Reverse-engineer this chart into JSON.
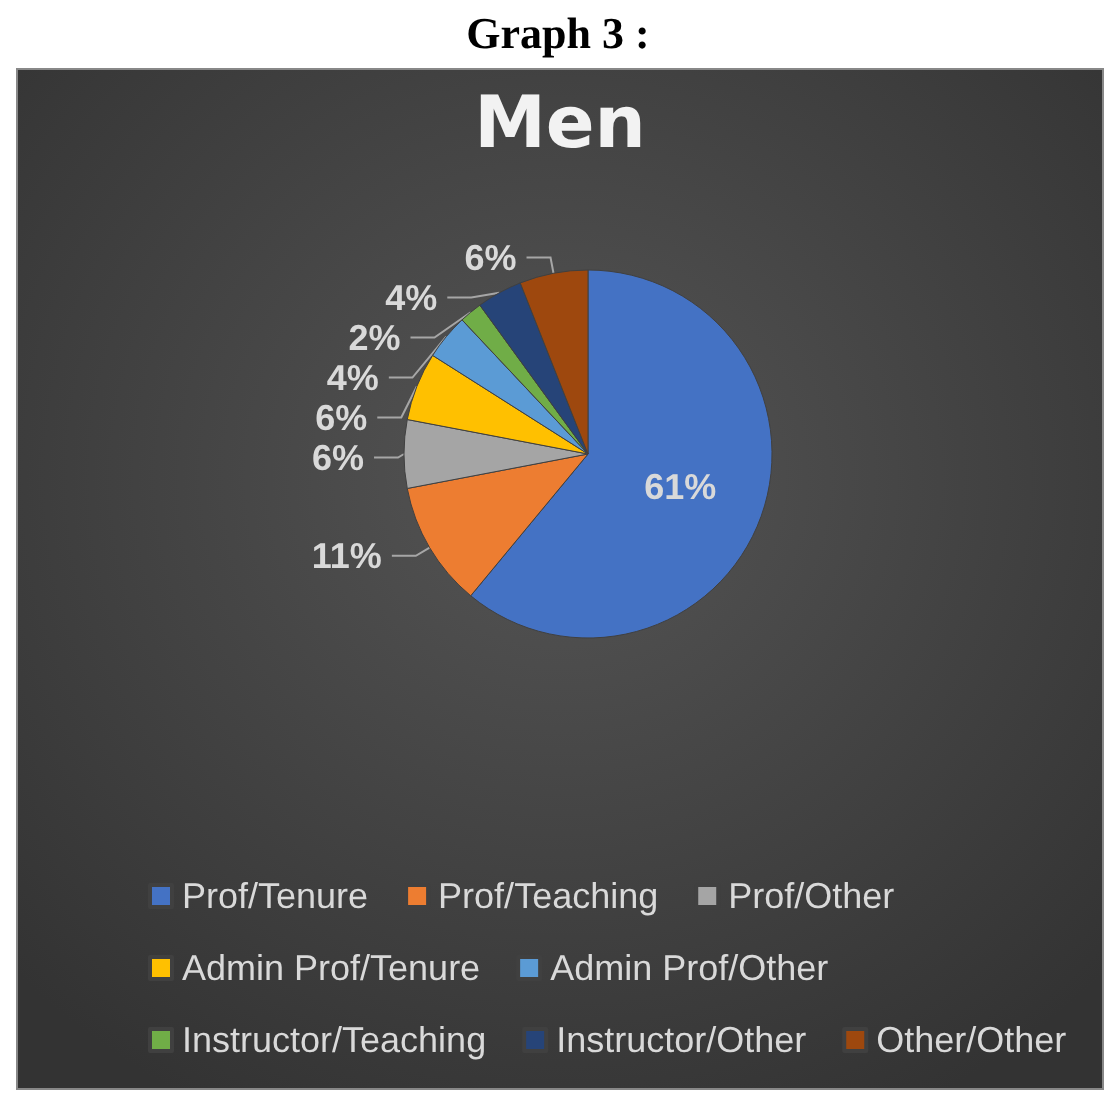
{
  "chart_data": {
    "type": "pie",
    "title": "Men",
    "annotations": [
      "Graph 3 :"
    ],
    "categories": [
      "Prof/Tenure",
      "Prof/Teaching",
      "Prof/Other",
      "Admin Prof/Tenure",
      "Admin Prof/Other",
      "Instructor/Teaching",
      "Instructor/Other",
      "Other/Other"
    ],
    "values": [
      61,
      11,
      6,
      6,
      4,
      2,
      4,
      6
    ],
    "colors": [
      "#4472c4",
      "#ed7d31",
      "#a5a5a5",
      "#ffc000",
      "#5b9bd5",
      "#70ad47",
      "#264478",
      "#9e480e"
    ],
    "value_labels": [
      "61%",
      "11%",
      "6%",
      "6%",
      "4%",
      "2%",
      "4%",
      "6%"
    ],
    "legend": "bottom"
  }
}
